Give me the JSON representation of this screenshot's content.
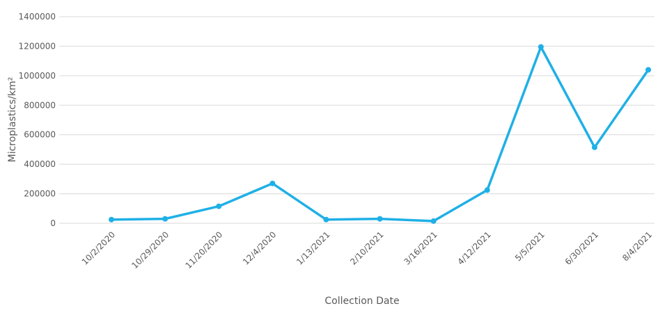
{
  "chart_data": {
    "type": "line",
    "x_label": "Collection Date",
    "y_label": "Microplastics/km²",
    "categories": [
      "10/2/2020",
      "10/29/2020",
      "11/20/2020",
      "12/4/2020",
      "1/13/2021",
      "2/10/2021",
      "3/16/2021",
      "4/12/2021",
      "5/5/2021",
      "6/30/2021",
      "8/4/2021"
    ],
    "values": [
      25000,
      30000,
      115000,
      270000,
      25000,
      30000,
      15000,
      225000,
      1195000,
      515000,
      1040000
    ],
    "color": "#1fb0e6",
    "ylim": [
      0,
      1400000
    ],
    "yticks": [
      0,
      200000,
      400000,
      600000,
      800000,
      1000000,
      1200000,
      1400000
    ],
    "grid": true
  }
}
